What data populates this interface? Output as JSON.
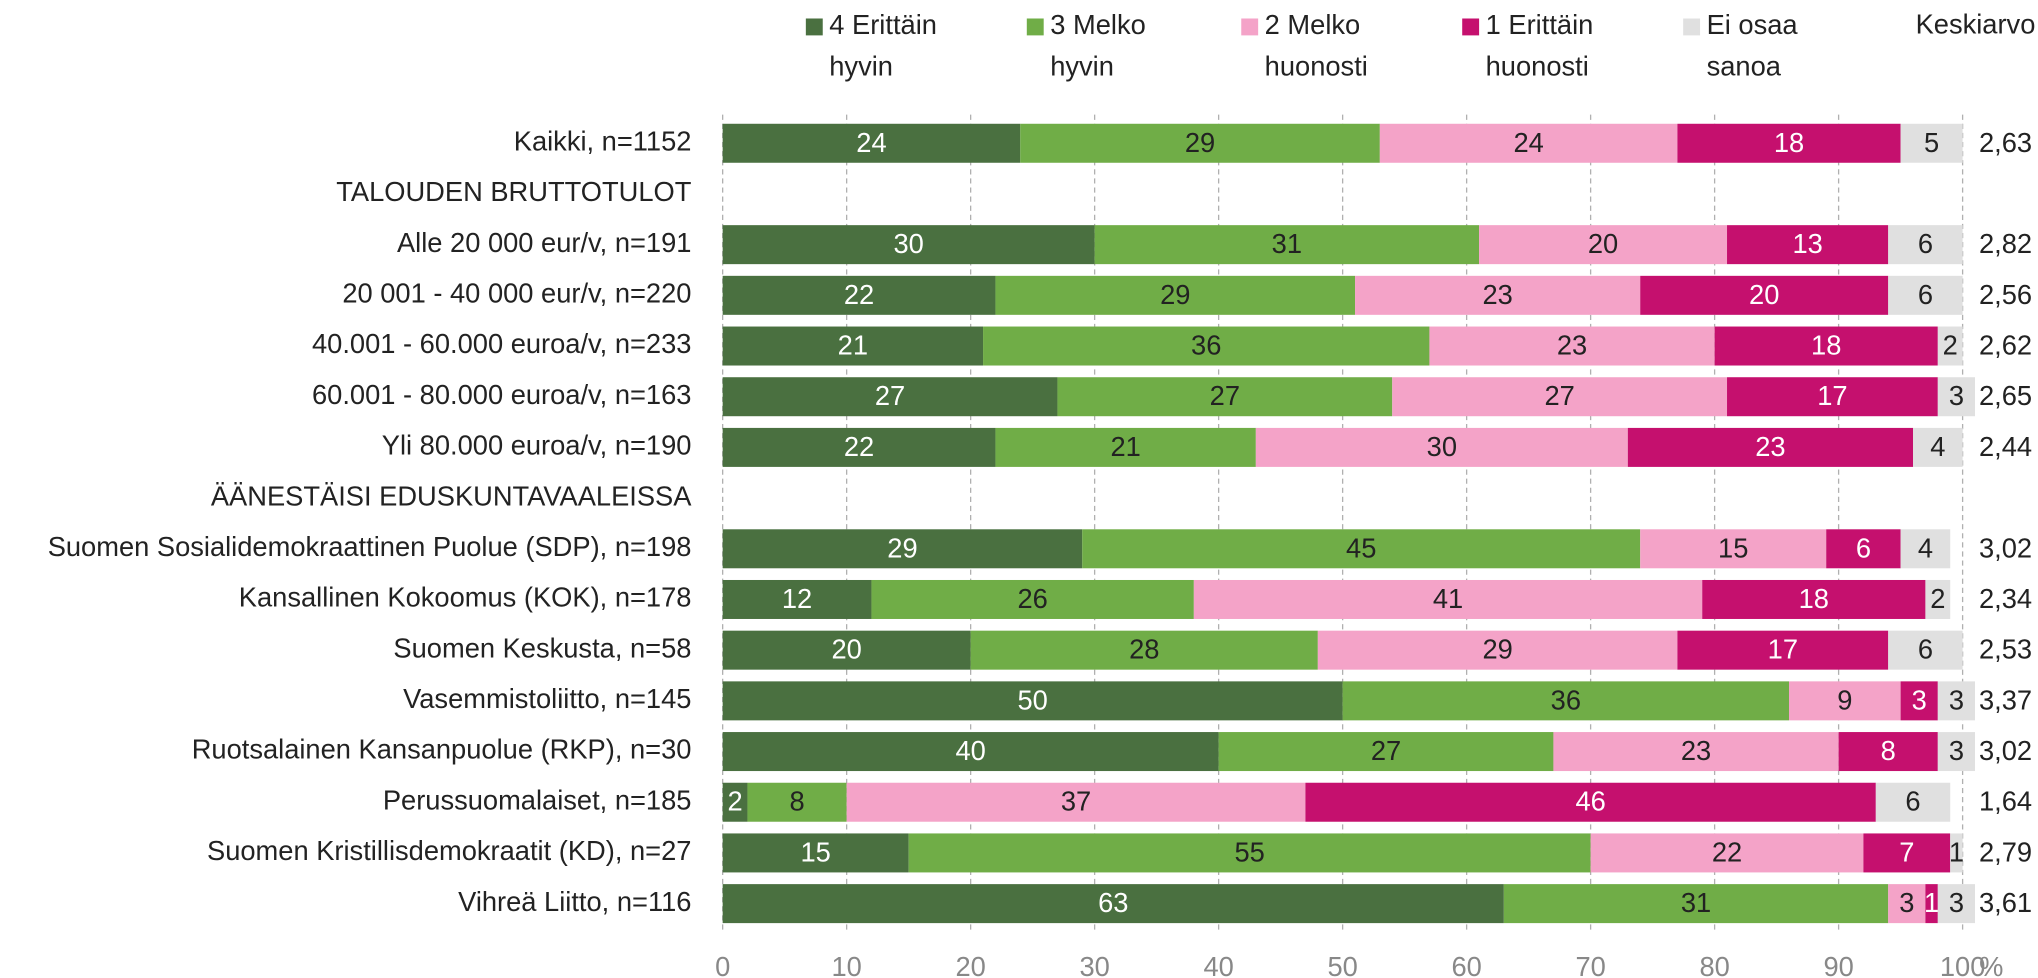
{
  "chart_data": {
    "type": "stacked-barh",
    "x_label": "%",
    "categories": [
      "Kaikki, n=1152",
      "TALOUDEN BRUTTOTULOT",
      "Alle 20 000 eur/v, n=191",
      "20 001 - 40 000 eur/v, n=220",
      "40.001 - 60.000 euroa/v, n=233",
      "60.001 - 80.000 euroa/v, n=163",
      "Yli 80.000 euroa/v, n=190",
      "ÄÄNESTÄISI EDUSKUNTAVAALEISSA",
      "Suomen Sosialidemokraattinen Puolue (SDP), n=198",
      "Kansallinen Kokoomus (KOK), n=178",
      "Suomen Keskusta, n=58",
      "Vasemmistoliitto, n=145",
      "Ruotsalainen Kansanpuolue (RKP), n=30",
      "Perussuomalaiset, n=185",
      "Suomen Kristillisdemokraatit (KD), n=27",
      "Vihreä Liitto, n=116"
    ],
    "series": [
      {
        "name": "4 Erittäin hyvin",
        "color": "#4a7040",
        "label_color": "#ffffff",
        "values": [
          24,
          null,
          30,
          22,
          21,
          27,
          22,
          null,
          29,
          12,
          20,
          50,
          40,
          2,
          15,
          63
        ]
      },
      {
        "name": "3 Melko hyvin",
        "color": "#70ad47",
        "label_color": "#222222",
        "values": [
          29,
          null,
          31,
          29,
          36,
          27,
          21,
          null,
          45,
          26,
          28,
          36,
          27,
          8,
          55,
          31
        ]
      },
      {
        "name": "2 Melko huonosti",
        "color": "#f4a3c8",
        "label_color": "#222222",
        "values": [
          24,
          null,
          20,
          23,
          23,
          27,
          30,
          null,
          15,
          41,
          29,
          9,
          23,
          37,
          22,
          3
        ]
      },
      {
        "name": "1 Erittäin huonosti",
        "color": "#c5106e",
        "label_color": "#ffffff",
        "values": [
          18,
          null,
          13,
          20,
          18,
          17,
          23,
          null,
          6,
          18,
          17,
          3,
          8,
          46,
          7,
          1
        ]
      },
      {
        "name": "Ei osaa sanoa",
        "color": "#e0e0e0",
        "label_color": "#222222",
        "values": [
          5,
          null,
          6,
          6,
          2,
          3,
          4,
          null,
          4,
          2,
          6,
          3,
          3,
          6,
          1,
          3
        ]
      }
    ],
    "averages": {
      "name": "Keskiarvo",
      "values": [
        2.63,
        null,
        2.82,
        2.56,
        2.62,
        2.65,
        2.44,
        null,
        3.02,
        2.34,
        2.53,
        3.37,
        3.02,
        1.64,
        2.79,
        3.61
      ],
      "value_labels": [
        "2,63",
        null,
        "2,82",
        "2,56",
        "2,62",
        "2,65",
        "2,44",
        null,
        "3,02",
        "2,34",
        "2,53",
        "3,37",
        "3,02",
        "1,64",
        "2,79",
        "3,61"
      ]
    },
    "xlim": [
      0,
      100
    ],
    "xticks": [
      0,
      10,
      20,
      30,
      40,
      50,
      60,
      70,
      80,
      90,
      100
    ],
    "grid": true,
    "legend": "top"
  }
}
